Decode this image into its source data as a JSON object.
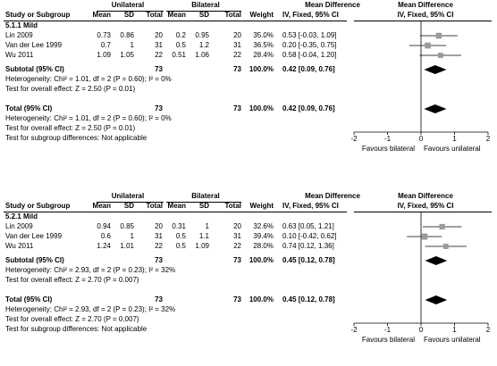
{
  "headers": {
    "group1": "Unilateral",
    "group2": "Bilateral",
    "mean_diff": "Mean Difference",
    "mean_diff_plot": "Mean Difference",
    "study": "Study or Subgroup",
    "mean": "Mean",
    "sd": "SD",
    "total": "Total",
    "weight": "Weight",
    "method": "IV, Fixed, 95% CI",
    "method_plot": "IV, Fixed, 95% CI"
  },
  "chart_data": [
    {
      "type": "forest",
      "subgroup_label": "5.1.1 Mild",
      "studies": [
        {
          "name": "Lin 2009",
          "m1": "0.73",
          "sd1": "0.86",
          "n1": "20",
          "m2": "0.2",
          "sd2": "0.95",
          "n2": "20",
          "weight": "35.0%",
          "ci_text": "0.53 [-0.03, 1.09]",
          "est": 0.53,
          "lo": -0.03,
          "hi": 1.09,
          "w": 35.0
        },
        {
          "name": "Van der Lee 1999",
          "m1": "0.7",
          "sd1": "1",
          "n1": "31",
          "m2": "0.5",
          "sd2": "1.2",
          "n2": "31",
          "weight": "36.5%",
          "ci_text": "0.20 [-0.35, 0.75]",
          "est": 0.2,
          "lo": -0.35,
          "hi": 0.75,
          "w": 36.5
        },
        {
          "name": "Wu 2011",
          "m1": "1.09",
          "sd1": "1.05",
          "n1": "22",
          "m2": "0.51",
          "sd2": "1.06",
          "n2": "22",
          "weight": "28.4%",
          "ci_text": "0.58 [-0.04, 1.20]",
          "est": 0.58,
          "lo": -0.04,
          "hi": 1.2,
          "w": 28.4
        }
      ],
      "subtotal": {
        "label": "Subtotal (95% CI)",
        "n1": "73",
        "n2": "73",
        "weight": "100.0%",
        "ci_text": "0.42 [0.09, 0.76]",
        "est": 0.42,
        "lo": 0.09,
        "hi": 0.76
      },
      "sub_het": "Heterogeneity: Chi² = 1.01, df = 2 (P = 0.60); I² = 0%",
      "sub_test": "Test for overall effect: Z = 2.50 (P = 0.01)",
      "total": {
        "label": "Total (95% CI)",
        "n1": "73",
        "n2": "73",
        "weight": "100.0%",
        "ci_text": "0.42 [0.09, 0.76]",
        "est": 0.42,
        "lo": 0.09,
        "hi": 0.76
      },
      "tot_het": "Heterogeneity: Chi² = 1.01, df = 2 (P = 0.60); I² = 0%",
      "tot_test": "Test for overall effect: Z = 2.50 (P = 0.01)",
      "subgroup_diff": "Test for subgroup differences: Not applicable",
      "xlim": [
        -2,
        2
      ],
      "ticks": [
        "-2",
        "-1",
        "0",
        "1",
        "2"
      ],
      "favours_left": "Favours bilateral",
      "favours_right": "Favours unilateral"
    },
    {
      "type": "forest",
      "subgroup_label": "5.2.1 Mild",
      "studies": [
        {
          "name": "Lin 2009",
          "m1": "0.94",
          "sd1": "0.85",
          "n1": "20",
          "m2": "0.31",
          "sd2": "1",
          "n2": "20",
          "weight": "32.6%",
          "ci_text": "0.63 [0.05, 1.21]",
          "est": 0.63,
          "lo": 0.05,
          "hi": 1.21,
          "w": 32.6
        },
        {
          "name": "Van der Lee 1999",
          "m1": "0.6",
          "sd1": "1",
          "n1": "31",
          "m2": "0.5",
          "sd2": "1.1",
          "n2": "31",
          "weight": "39.4%",
          "ci_text": "0.10 [-0.42, 0.62]",
          "est": 0.1,
          "lo": -0.42,
          "hi": 0.62,
          "w": 39.4
        },
        {
          "name": "Wu 2011",
          "m1": "1.24",
          "sd1": "1.01",
          "n1": "22",
          "m2": "0.5",
          "sd2": "1.09",
          "n2": "22",
          "weight": "28.0%",
          "ci_text": "0.74 [0.12, 1.36]",
          "est": 0.74,
          "lo": 0.12,
          "hi": 1.36,
          "w": 28.0
        }
      ],
      "subtotal": {
        "label": "Subtotal (95% CI)",
        "n1": "73",
        "n2": "73",
        "weight": "100.0%",
        "ci_text": "0.45 [0.12, 0.78]",
        "est": 0.45,
        "lo": 0.12,
        "hi": 0.78
      },
      "sub_het": "Heterogeneity: Chi² = 2.93, df = 2 (P = 0.23); I² = 32%",
      "sub_test": "Test for overall effect: Z = 2.70 (P = 0.007)",
      "total": {
        "label": "Total (95% CI)",
        "n1": "73",
        "n2": "73",
        "weight": "100.0%",
        "ci_text": "0.45 [0.12, 0.78]",
        "est": 0.45,
        "lo": 0.12,
        "hi": 0.78
      },
      "tot_het": "Heterogeneity: Chi² = 2.93, df = 2 (P = 0.23); I² = 32%",
      "tot_test": "Test for overall effect: Z = 2.70 (P = 0.007)",
      "subgroup_diff": "Test for subgroup differences: Not applicable",
      "xlim": [
        -2,
        2
      ],
      "ticks": [
        "-2",
        "-1",
        "0",
        "1",
        "2"
      ],
      "favours_left": "Favours bilateral",
      "favours_right": "Favours unilateral"
    }
  ]
}
